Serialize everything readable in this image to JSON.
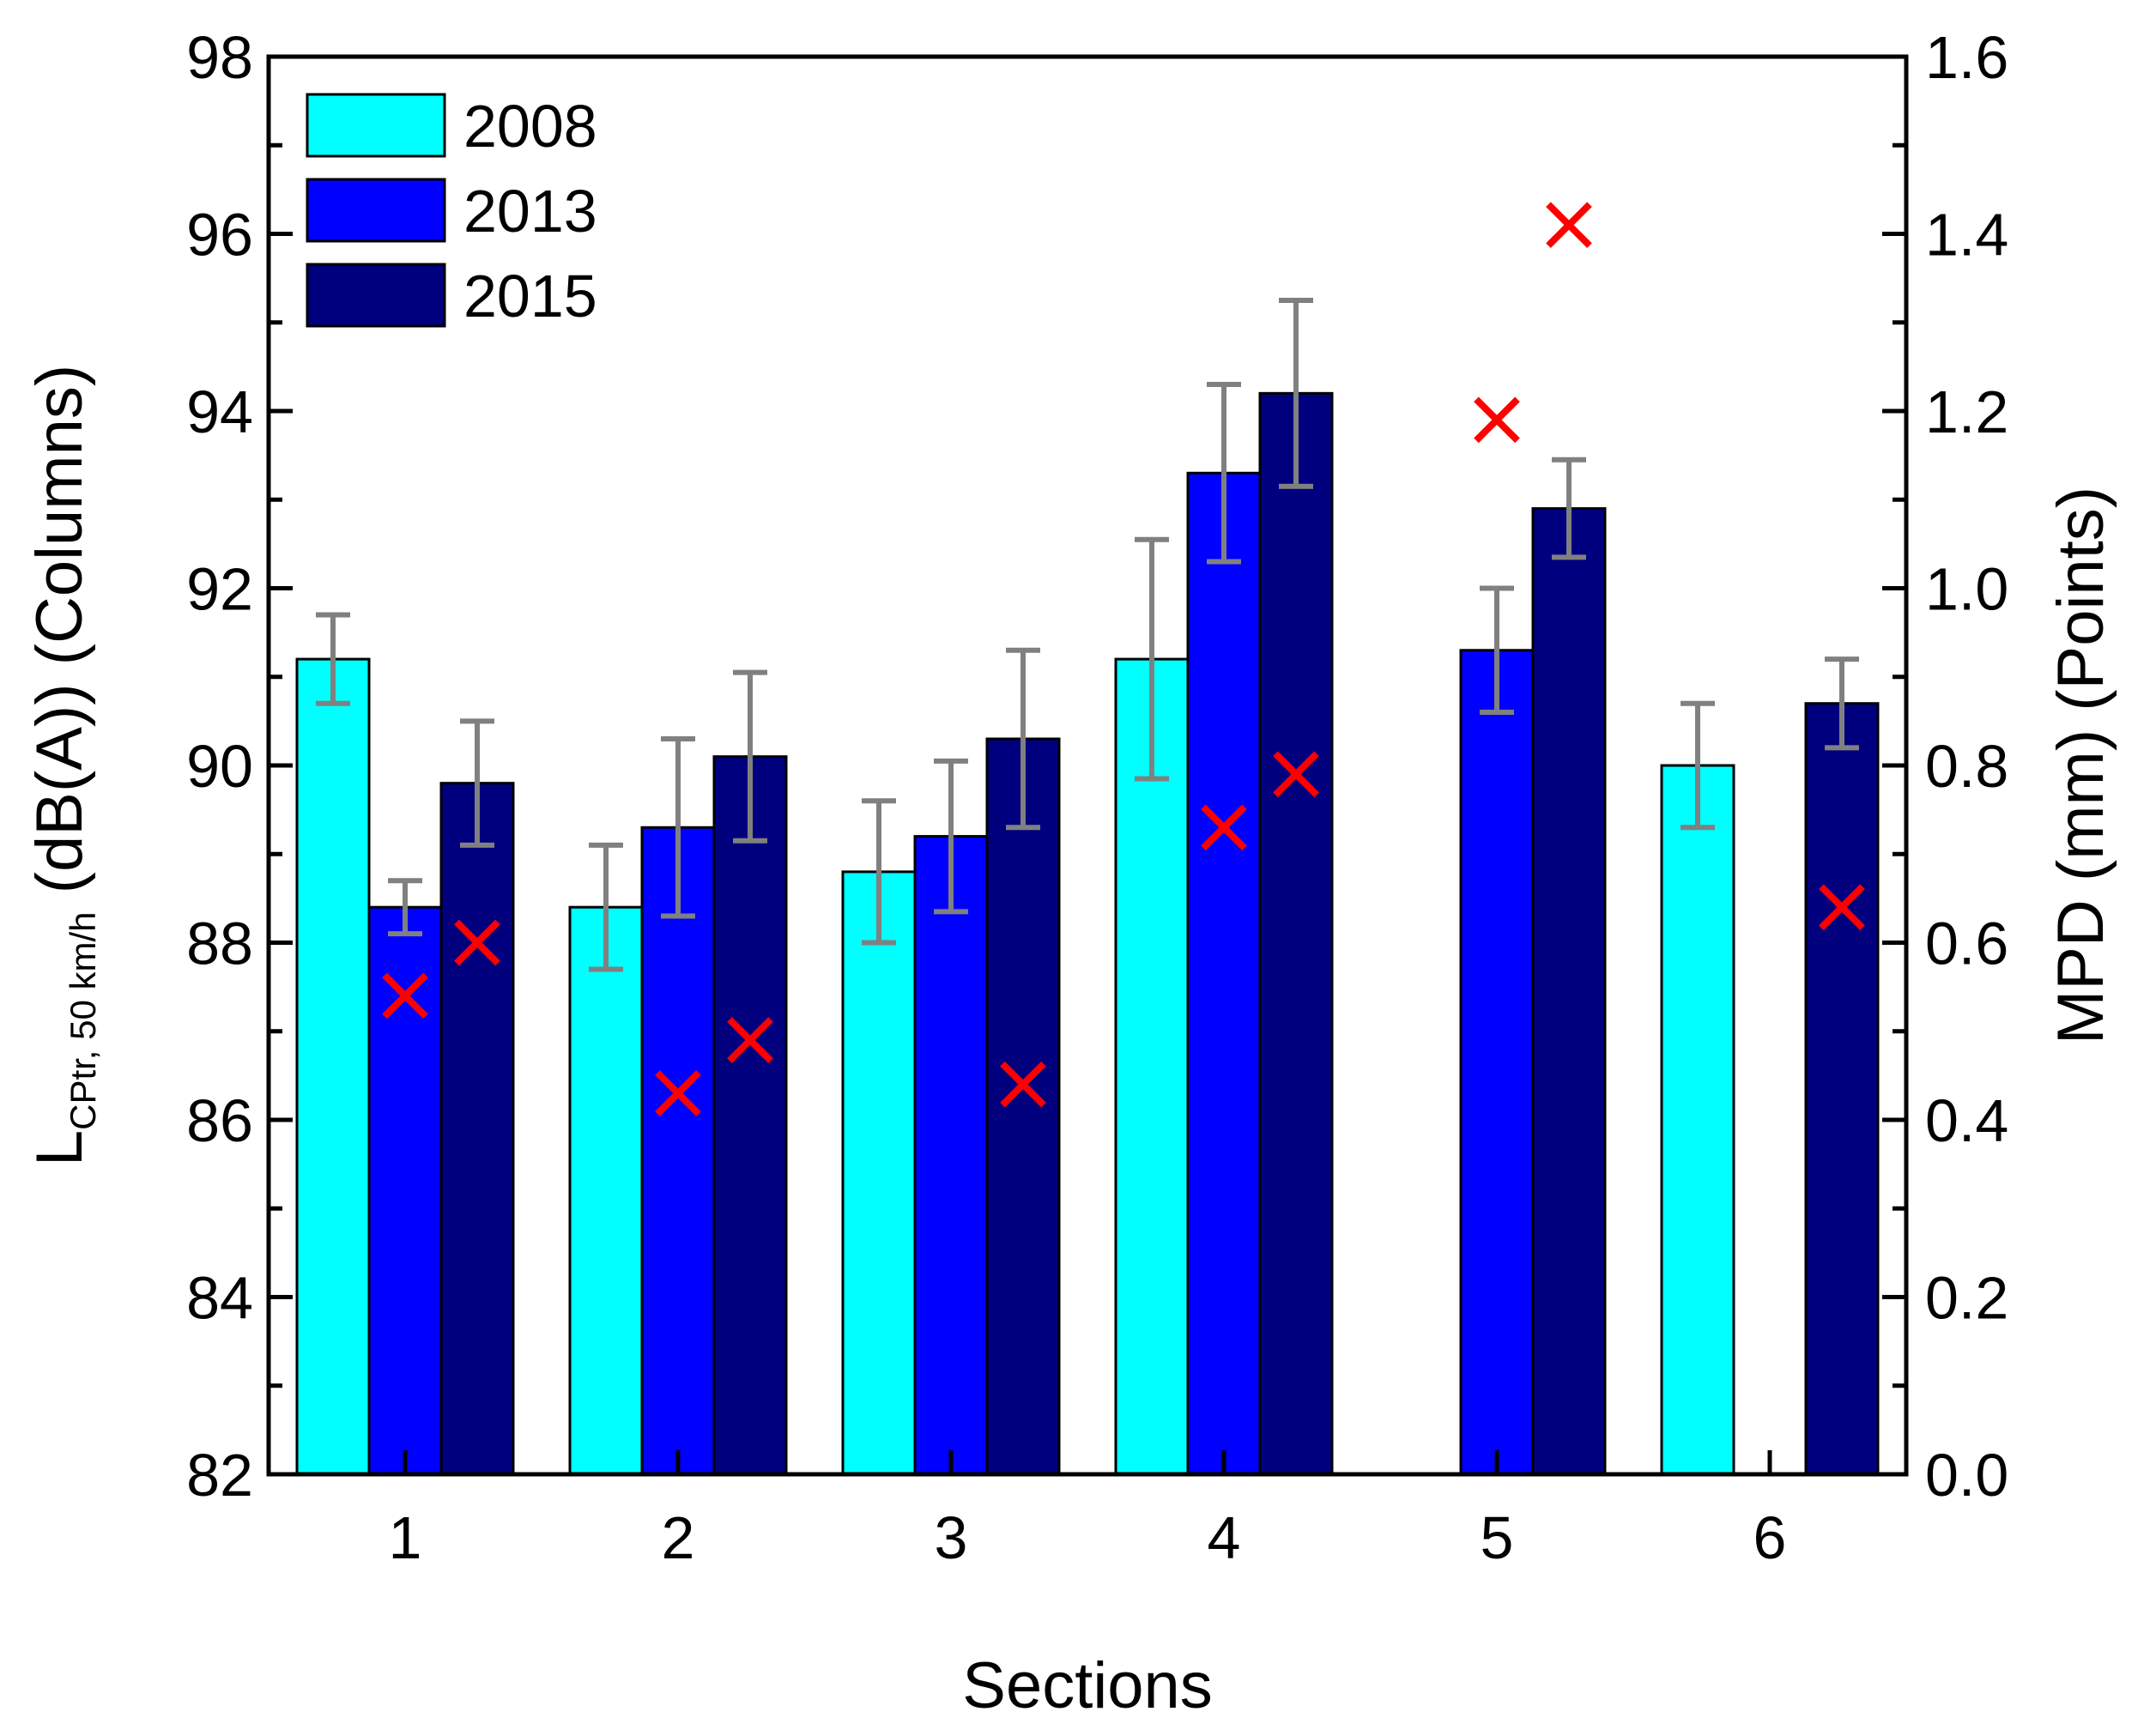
{
  "chart_data": {
    "type": "bar",
    "title": "",
    "xlabel": "Sections",
    "ylabel": {
      "main": "L",
      "subscript": "CPtr, 50 km/h",
      "rest": " (dB(A)) (Columns)"
    },
    "y2label": "MPD (mm) (Points)",
    "categories": [
      "1",
      "2",
      "3",
      "4",
      "5",
      "6"
    ],
    "ylim": [
      82,
      98
    ],
    "y_ticks": [
      "82",
      "84",
      "86",
      "88",
      "90",
      "92",
      "94",
      "96",
      "98"
    ],
    "y2lim": [
      0.0,
      1.6
    ],
    "y2_ticks": [
      "0.0",
      "0.2",
      "0.4",
      "0.6",
      "0.8",
      "1.0",
      "1.2",
      "1.4",
      "1.6"
    ],
    "legend_position": "top-left",
    "series": [
      {
        "name": "2008",
        "color": "#00ffff",
        "values": [
          91.2,
          88.4,
          88.8,
          91.2,
          null,
          90.0
        ],
        "errors": [
          0.5,
          0.7,
          0.8,
          1.35,
          null,
          0.7
        ]
      },
      {
        "name": "2013",
        "color": "#0000ff",
        "values": [
          88.4,
          89.3,
          89.2,
          93.3,
          91.3,
          null
        ],
        "errors": [
          0.3,
          1.0,
          0.85,
          1.0,
          0.7,
          null
        ]
      },
      {
        "name": "2015",
        "color": "#00007f",
        "values": [
          89.8,
          90.1,
          90.3,
          94.2,
          92.9,
          90.7
        ],
        "errors": [
          0.7,
          0.95,
          1.0,
          1.05,
          0.55,
          0.5
        ]
      }
    ],
    "error_bar_color": "#808080",
    "mpd_points": {
      "name": "MPD",
      "marker": "x",
      "color": "#ff0000",
      "points": [
        {
          "category": "1",
          "year": "2013",
          "value": 0.54
        },
        {
          "category": "1",
          "year": "2015",
          "value": 0.6
        },
        {
          "category": "2",
          "year": "2013",
          "value": 0.43
        },
        {
          "category": "2",
          "year": "2015",
          "value": 0.49
        },
        {
          "category": "3",
          "year": "2015",
          "value": 0.44
        },
        {
          "category": "4",
          "year": "2013",
          "value": 0.73
        },
        {
          "category": "4",
          "year": "2015",
          "value": 0.79
        },
        {
          "category": "5",
          "year": "2013",
          "value": 1.19
        },
        {
          "category": "5",
          "year": "2015",
          "value": 1.41
        },
        {
          "category": "6",
          "year": "2015",
          "value": 0.64
        }
      ]
    }
  }
}
